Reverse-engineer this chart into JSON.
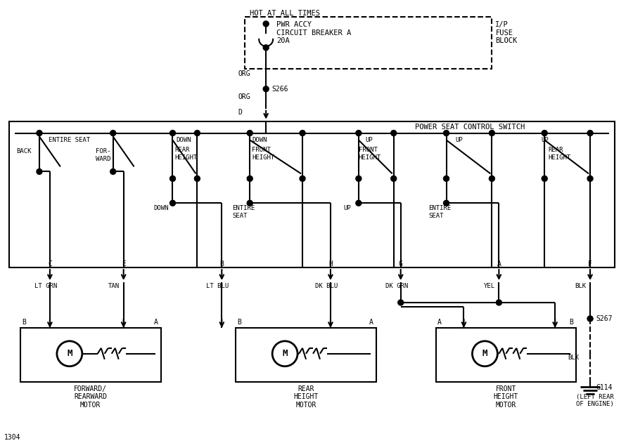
{
  "title": "",
  "bg_color": "#ffffff",
  "line_color": "#000000",
  "text_color": "#000000",
  "fig_width": 9.0,
  "fig_height": 6.31,
  "dpi": 100,
  "hot_at_all_times": "HOT AT ALL TIMES",
  "pwr_accy_text": "PWR ACCY\nCIRCUIT BREAKER A\n20A",
  "ip_fuse_block": "I/P\nFUSE\nBLOCK",
  "s266_label": "S266",
  "s267_label": "S267",
  "g114_label": "G114",
  "g114_sub": "(LEFT REAR\nOF ENGINE)",
  "power_seat_switch": "POWER SEAT CONTROL SWITCH",
  "org_label": "ORG",
  "d_label": "D",
  "blk_label": "BLK",
  "wire_labels_top": [
    "C",
    "E",
    "B",
    "H",
    "G",
    "A",
    "F"
  ],
  "wire_colors_top": [
    "LT GRN",
    "TAN",
    "LT BLU",
    "DK BLU",
    "DK GRN",
    "YEL",
    "BLK"
  ],
  "wire_labels_bot": [
    "B",
    "A",
    "B",
    "A",
    "A",
    "B"
  ],
  "motor_labels": [
    "FORWARD/\nREARWARD\nMOTOR",
    "REAR\nHEIGHT\nMOTOR",
    "FRONT\nHEIGHT\nMOTOR"
  ],
  "page_num": "1304"
}
